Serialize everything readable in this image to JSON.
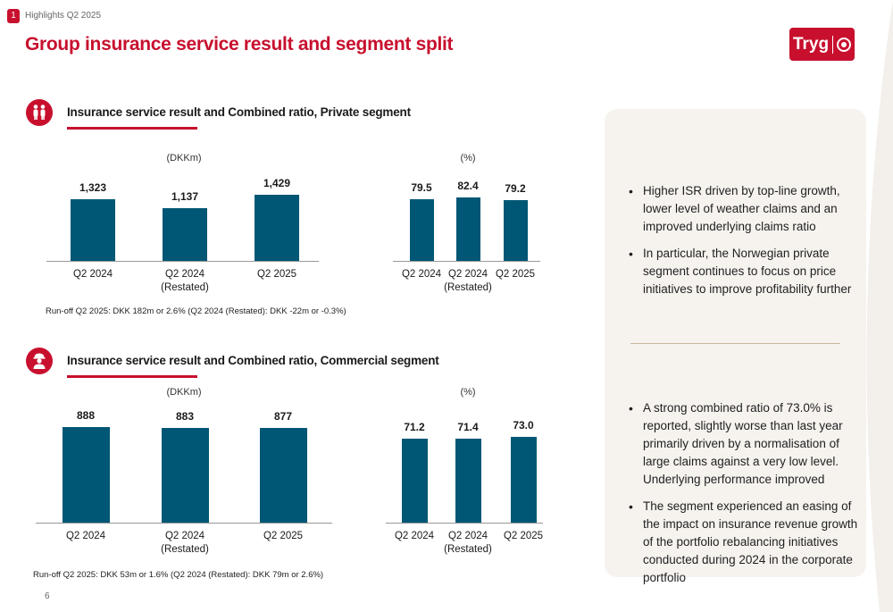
{
  "header": {
    "badge": "1",
    "crumb": "Highlights  Q2 2025",
    "title": "Group insurance service result and segment split",
    "logo_text": "Tryg"
  },
  "private": {
    "title": "Insurance service result and Combined ratio, Private segment",
    "isr_unit": "(DKKm)",
    "cr_unit": "(%)",
    "runoff": "Run-off Q2 2025: DKK 182m or 2.6% (Q2 2024 (Restated): DKK -22m or -0.3%)"
  },
  "commercial": {
    "title": "Insurance service result and Combined ratio, Commercial segment",
    "isr_unit": "(DKKm)",
    "cr_unit": "(%)",
    "runoff": "Run-off Q2 2025: DKK 53m or 1.6% (Q2 2024 (Restated): DKK 79m or 2.6%)"
  },
  "panel": {
    "private_bullets": [
      "Higher ISR driven by top-line growth, lower level of weather claims and an improved underlying claims ratio",
      "In particular, the Norwegian private segment continues to focus on price initiatives to improve profitability further"
    ],
    "commercial_bullets": [
      "A strong combined ratio of 73.0% is reported, slightly worse than last year primarily driven by a normalisation of large claims against a very low level. Underlying performance improved",
      "The segment experienced an easing of the impact on insurance revenue growth of the portfolio rebalancing initiatives conducted during 2024 in the corporate portfolio"
    ]
  },
  "footer": {
    "page_number": "6"
  },
  "colors": {
    "accent": "#c8102e",
    "bar": "#005775",
    "panel": "#f6f3ef"
  },
  "chart_data": [
    {
      "type": "bar",
      "id": "private-isr",
      "categories": [
        "Q2 2024",
        "Q2 2024 (Restated)",
        "Q2 2025"
      ],
      "category_lines": [
        [
          "Q2 2024"
        ],
        [
          "Q2 2024",
          "(Restated)"
        ],
        [
          "Q2 2025"
        ]
      ],
      "values": [
        1323,
        1137,
        1429
      ],
      "labels": [
        "1,323",
        "1,137",
        "1,429"
      ],
      "ylabel": "(DKKm)",
      "ylim": [
        0,
        1429
      ]
    },
    {
      "type": "bar",
      "id": "private-cr",
      "categories": [
        "Q2 2024",
        "Q2 2024 (Restated)",
        "Q2 2025"
      ],
      "category_lines": [
        [
          "Q2 2024"
        ],
        [
          "Q2 2024",
          "(Restated)"
        ],
        [
          "Q2 2025"
        ]
      ],
      "values": [
        79.5,
        82.4,
        79.2
      ],
      "labels": [
        "79.5",
        "82.4",
        "79.2"
      ],
      "ylabel": "(%)",
      "ylim": [
        0,
        82.4
      ]
    },
    {
      "type": "bar",
      "id": "commercial-isr",
      "categories": [
        "Q2 2024",
        "Q2 2024 (Restated)",
        "Q2 2025"
      ],
      "category_lines": [
        [
          "Q2 2024"
        ],
        [
          "Q2 2024",
          "(Restated)"
        ],
        [
          "Q2 2025"
        ]
      ],
      "values": [
        888,
        883,
        877
      ],
      "labels": [
        "888",
        "883",
        "877"
      ],
      "ylabel": "(DKKm)",
      "ylim": [
        0,
        888
      ]
    },
    {
      "type": "bar",
      "id": "commercial-cr",
      "categories": [
        "Q2 2024",
        "Q2 2024 (Restated)",
        "Q2 2025"
      ],
      "category_lines": [
        [
          "Q2 2024"
        ],
        [
          "Q2 2024",
          "(Restated)"
        ],
        [
          "Q2 2025"
        ]
      ],
      "values": [
        71.2,
        71.4,
        73.0
      ],
      "labels": [
        "71.2",
        "71.4",
        "73.0"
      ],
      "ylabel": "(%)",
      "ylim": [
        0,
        73.0
      ]
    }
  ]
}
